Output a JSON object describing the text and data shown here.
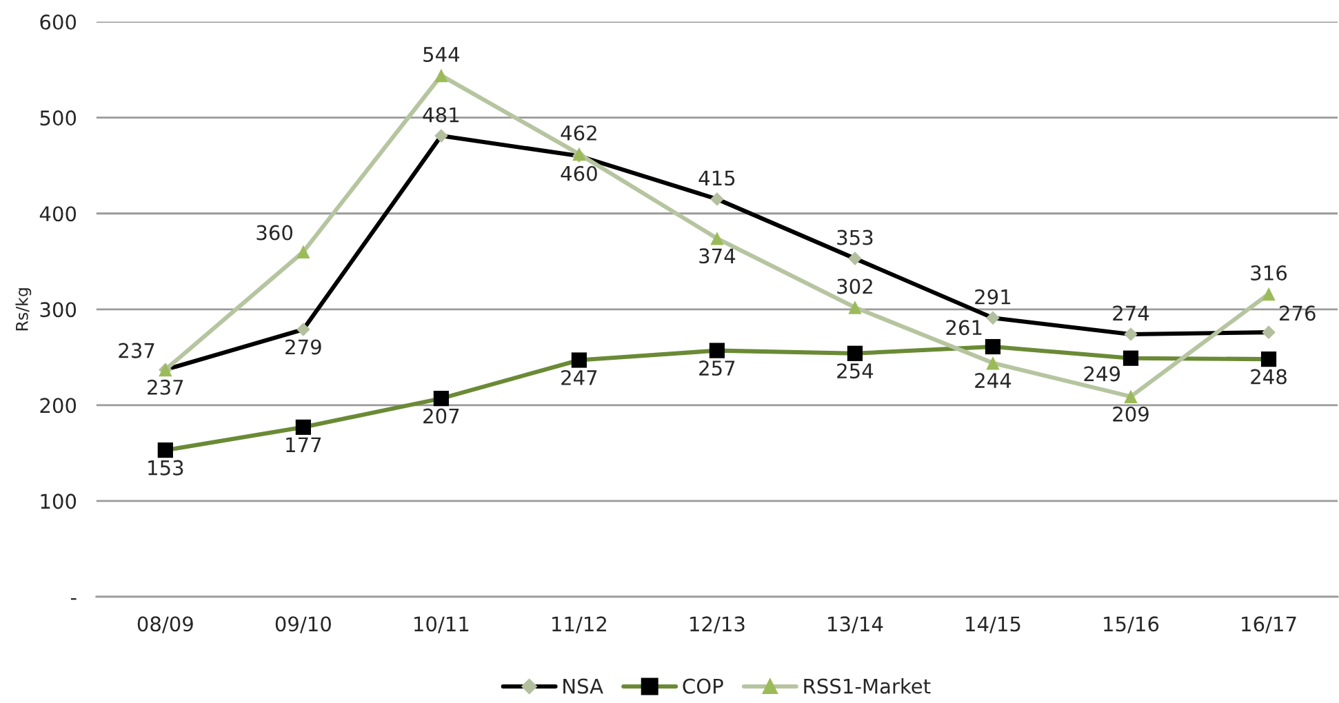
{
  "chart_data": {
    "type": "line",
    "ylabel": "Rs/kg",
    "categories": [
      "08/09",
      "09/10",
      "10/11",
      "11/12",
      "12/13",
      "13/14",
      "14/15",
      "15/16",
      "16/17"
    ],
    "series": [
      {
        "name": "NSA",
        "color": "#000000",
        "marker": "diamond",
        "colors": [
          "#b3bf9f",
          "#b3bf9f",
          "#b3bf9f",
          "#b3bf9f",
          "#b3bf9f",
          "#b3bf9f",
          "#b3bf9f",
          "#b3bf9f",
          "#b3bf9f"
        ],
        "values": [
          237,
          279,
          481,
          460,
          415,
          353,
          291,
          274,
          276
        ]
      },
      {
        "name": "COP",
        "color": "#6a8a35",
        "marker": "square",
        "colors": [
          "#000000",
          "#000000",
          "#000000",
          "#000000",
          "#000000",
          "#000000",
          "#000000",
          "#000000",
          "#000000"
        ],
        "values": [
          153,
          177,
          207,
          247,
          257,
          254,
          261,
          249,
          248
        ]
      },
      {
        "name": "RSS1-Market",
        "color": "#b6c5a0",
        "marker": "triangle",
        "colors": [
          "#9bbb59",
          "#9bbb59",
          "#9bbb59",
          "#9bbb59",
          "#9bbb59",
          "#9bbb59",
          "#9bbb59",
          "#9bbb59",
          "#9bbb59"
        ],
        "values": [
          237,
          360,
          544,
          462,
          374,
          302,
          244,
          209,
          316
        ]
      }
    ],
    "ylim": [
      0,
      600
    ],
    "yticks": [
      {
        "value": 0,
        "label": "-"
      },
      100,
      200,
      300,
      400,
      500,
      600
    ],
    "grid": "y",
    "legend": "bottom",
    "data_labels": true
  }
}
